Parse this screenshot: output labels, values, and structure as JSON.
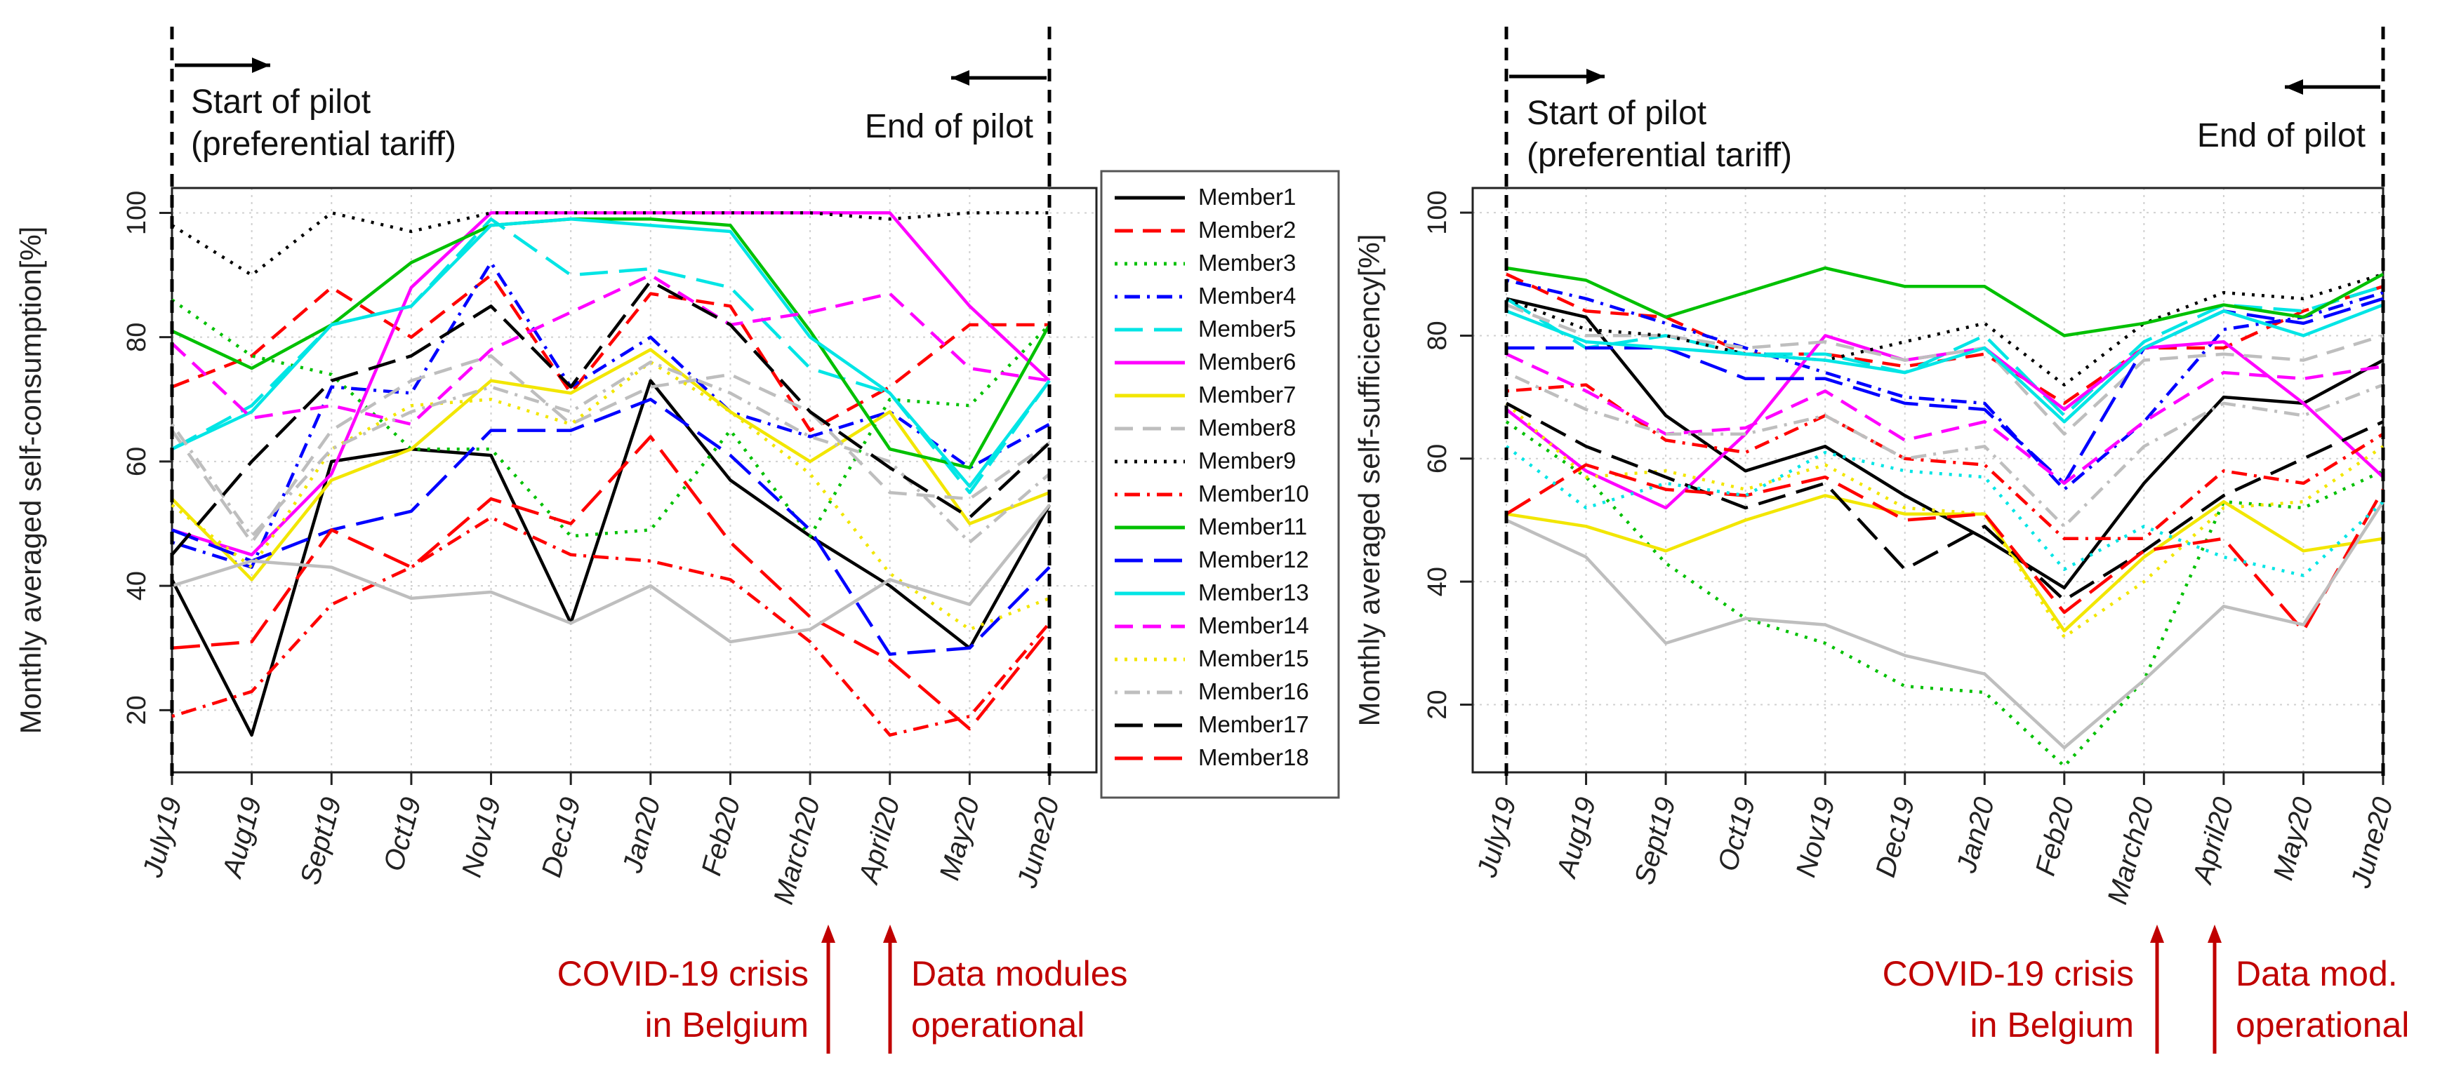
{
  "colors": {
    "annotation_red": "#c00000",
    "grid": "#d0d0d0",
    "axis": "#222222"
  },
  "legend": [
    {
      "name": "Member1",
      "color": "#000000",
      "dash": "solid"
    },
    {
      "name": "Member2",
      "color": "#ff0000",
      "dash": "dashed"
    },
    {
      "name": "Member3",
      "color": "#00c000",
      "dash": "dotted"
    },
    {
      "name": "Member4",
      "color": "#0000ff",
      "dash": "dotdash"
    },
    {
      "name": "Member5",
      "color": "#00e5e5",
      "dash": "longdash"
    },
    {
      "name": "Member6",
      "color": "#ff00ff",
      "dash": "solid"
    },
    {
      "name": "Member7",
      "color": "#f2e600",
      "dash": "solid"
    },
    {
      "name": "Member8",
      "color": "#bebebe",
      "dash": "dashed"
    },
    {
      "name": "Member9",
      "color": "#000000",
      "dash": "dotted"
    },
    {
      "name": "Member10",
      "color": "#ff0000",
      "dash": "dotdash"
    },
    {
      "name": "Member11",
      "color": "#00c000",
      "dash": "solid"
    },
    {
      "name": "Member12",
      "color": "#0000ff",
      "dash": "longdash"
    },
    {
      "name": "Member13",
      "color": "#00e5e5",
      "dash": "solid"
    },
    {
      "name": "Member14",
      "color": "#ff00ff",
      "dash": "dashed"
    },
    {
      "name": "Member15",
      "color": "#f2e600",
      "dash": "dotted"
    },
    {
      "name": "Member16",
      "color": "#bebebe",
      "dash": "dotdash"
    },
    {
      "name": "Member17",
      "color": "#000000",
      "dash": "longdash"
    },
    {
      "name": "Member18",
      "color": "#ff0000",
      "dash": "longdash"
    }
  ],
  "chart_data": [
    {
      "type": "line",
      "ylabel": "Monthly averaged self-consumption[%]",
      "yticks": [
        20,
        40,
        60,
        80,
        100
      ],
      "ylim": [
        10,
        104
      ],
      "categories": [
        "July19",
        "Aug19",
        "Sept19",
        "Oct19",
        "Nov19",
        "Dec19",
        "Jan20",
        "Feb20",
        "March20",
        "April20",
        "May20",
        "June20"
      ],
      "annotations": {
        "start_label": [
          "Start of pilot",
          "(preferential tariff)"
        ],
        "end_label": "End of pilot",
        "covid_label": [
          "COVID-19 crisis",
          "in Belgium"
        ],
        "modules_label": [
          "Data modules",
          "operational"
        ]
      },
      "series": [
        {
          "name": "Member1",
          "values": [
            41,
            16,
            60,
            62,
            61,
            34,
            73,
            57,
            48,
            40,
            30,
            53
          ]
        },
        {
          "name": "Member2",
          "values": [
            72,
            77,
            88,
            80,
            90,
            71,
            87,
            85,
            65,
            72,
            82,
            82
          ]
        },
        {
          "name": "Member3",
          "values": [
            86,
            77,
            74,
            62,
            62,
            48,
            49,
            65,
            48,
            70,
            69,
            82
          ]
        },
        {
          "name": "Member4",
          "values": [
            47,
            43,
            72,
            71,
            92,
            72,
            80,
            68,
            64,
            68,
            59,
            66
          ]
        },
        {
          "name": "Member5",
          "values": [
            62,
            69,
            82,
            85,
            99,
            90,
            91,
            88,
            75,
            71,
            55,
            73
          ]
        },
        {
          "name": "Member6",
          "values": [
            49,
            45,
            58,
            88,
            100,
            100,
            100,
            100,
            100,
            100,
            85,
            73
          ]
        },
        {
          "name": "Member7",
          "values": [
            54,
            41,
            57,
            62,
            73,
            71,
            78,
            68,
            60,
            68,
            50,
            55
          ]
        },
        {
          "name": "Member8",
          "values": [
            65,
            47,
            65,
            73,
            77,
            66,
            72,
            74,
            68,
            55,
            54,
            63
          ]
        },
        {
          "name": "Member9",
          "values": [
            98,
            90,
            100,
            97,
            100,
            100,
            100,
            100,
            100,
            99,
            100,
            100
          ]
        },
        {
          "name": "Member10",
          "values": [
            19,
            23,
            37,
            43,
            51,
            45,
            44,
            41,
            31,
            16,
            19,
            34
          ]
        },
        {
          "name": "Member11",
          "values": [
            81,
            75,
            82,
            92,
            98,
            99,
            99,
            98,
            81,
            62,
            59,
            82
          ]
        },
        {
          "name": "Member12",
          "values": [
            49,
            44,
            49,
            52,
            65,
            65,
            70,
            61,
            49,
            29,
            30,
            43
          ]
        },
        {
          "name": "Member13",
          "values": [
            62,
            68,
            82,
            85,
            98,
            99,
            98,
            97,
            80,
            71,
            56,
            73
          ]
        },
        {
          "name": "Member14",
          "values": [
            79,
            67,
            69,
            66,
            78,
            84,
            90,
            82,
            84,
            87,
            75,
            73
          ]
        },
        {
          "name": "Member15",
          "values": [
            53,
            43,
            62,
            69,
            70,
            66,
            76,
            68,
            58,
            42,
            33,
            38
          ]
        },
        {
          "name": "Member16",
          "values": [
            66,
            48,
            62,
            68,
            72,
            68,
            76,
            71,
            64,
            60,
            47,
            58
          ]
        },
        {
          "name": "Member17",
          "values": [
            45,
            60,
            73,
            77,
            85,
            72,
            89,
            82,
            68,
            59,
            51,
            63
          ]
        },
        {
          "name": "Member18",
          "values": [
            30,
            31,
            49,
            43,
            54,
            50,
            64,
            47,
            35,
            28,
            17,
            33
          ]
        },
        {
          "name": "Member16 (grey solid)",
          "hidden_legend": true,
          "values": [
            40,
            44,
            43,
            38,
            39,
            34,
            40,
            31,
            33,
            41,
            37,
            53
          ],
          "color": "#bebebe",
          "dash": "solid"
        }
      ]
    },
    {
      "type": "line",
      "ylabel": "Monthly averaged self-sufficicency[%]",
      "yticks": [
        20,
        40,
        60,
        80,
        100
      ],
      "ylim": [
        9,
        104
      ],
      "categories": [
        "July19",
        "Aug19",
        "Sept19",
        "Oct19",
        "Nov19",
        "Dec19",
        "Jan20",
        "Feb20",
        "March20",
        "April20",
        "May20",
        "June20"
      ],
      "annotations": {
        "start_label": [
          "Start of pilot",
          "(preferential tariff)"
        ],
        "end_label": "End of pilot",
        "covid_label": [
          "COVID-19 crisis",
          "in Belgium"
        ],
        "modules_label": [
          "Data mod.",
          "operational"
        ]
      },
      "series": [
        {
          "name": "Member1",
          "values": [
            86,
            83,
            67,
            58,
            62,
            54,
            47,
            39,
            56,
            70,
            69,
            76
          ]
        },
        {
          "name": "Member2",
          "values": [
            90,
            84,
            83,
            77,
            77,
            75,
            77,
            69,
            78,
            78,
            84,
            88
          ]
        },
        {
          "name": "Member3",
          "values": [
            66,
            57,
            43,
            34,
            30,
            23,
            22,
            10,
            24,
            53,
            52,
            58
          ]
        },
        {
          "name": "Member4",
          "values": [
            89,
            86,
            82,
            78,
            74,
            70,
            69,
            55,
            66,
            81,
            83,
            87
          ]
        },
        {
          "name": "Member5",
          "values": [
            86,
            78,
            80,
            77,
            77,
            74,
            80,
            67,
            79,
            85,
            84,
            88
          ]
        },
        {
          "name": "Member6",
          "values": [
            68,
            58,
            52,
            64,
            80,
            76,
            78,
            68,
            78,
            79,
            69,
            57
          ]
        },
        {
          "name": "Member7",
          "values": [
            51,
            49,
            45,
            50,
            54,
            51,
            51,
            32,
            44,
            53,
            45,
            47
          ]
        },
        {
          "name": "Member8",
          "values": [
            85,
            80,
            80,
            78,
            79,
            76,
            78,
            64,
            76,
            77,
            76,
            80
          ]
        },
        {
          "name": "Member9",
          "values": [
            86,
            81,
            80,
            77,
            76,
            79,
            82,
            72,
            82,
            87,
            86,
            90
          ]
        },
        {
          "name": "Member10",
          "values": [
            71,
            72,
            63,
            61,
            67,
            60,
            59,
            47,
            47,
            58,
            56,
            64
          ]
        },
        {
          "name": "Member11",
          "values": [
            91,
            89,
            83,
            87,
            91,
            88,
            88,
            80,
            82,
            85,
            83,
            90
          ]
        },
        {
          "name": "Member12",
          "values": [
            78,
            78,
            78,
            73,
            73,
            69,
            68,
            56,
            78,
            84,
            82,
            86
          ]
        },
        {
          "name": "Member13",
          "values": [
            84,
            79,
            78,
            77,
            76,
            74,
            78,
            66,
            78,
            84,
            80,
            85
          ]
        },
        {
          "name": "Member14",
          "values": [
            77,
            71,
            64,
            65,
            71,
            63,
            66,
            56,
            66,
            74,
            73,
            75
          ]
        },
        {
          "name": "Member15",
          "values": [
            69,
            57,
            58,
            55,
            59,
            52,
            51,
            31,
            40,
            52,
            53,
            62
          ]
        },
        {
          "name": "Member16",
          "values": [
            74,
            68,
            64,
            64,
            67,
            60,
            62,
            49,
            62,
            69,
            67,
            72
          ]
        },
        {
          "name": "Member17",
          "values": [
            69,
            62,
            57,
            52,
            56,
            42,
            49,
            37,
            45,
            54,
            60,
            66
          ]
        },
        {
          "name": "Member18",
          "values": [
            51,
            59,
            55,
            54,
            57,
            50,
            51,
            35,
            45,
            47,
            32,
            55
          ]
        },
        {
          "name": "Member16 (grey solid)",
          "hidden_legend": true,
          "values": [
            50,
            44,
            30,
            34,
            33,
            28,
            25,
            13,
            24,
            36,
            33,
            53
          ],
          "color": "#bebebe",
          "dash": "solid"
        },
        {
          "name": "Member10 (cyan dotted)",
          "hidden_legend": true,
          "values": [
            62,
            52,
            56,
            54,
            61,
            58,
            57,
            42,
            49,
            44,
            41,
            53
          ],
          "color": "#00e5e5",
          "dash": "dotted"
        }
      ]
    }
  ]
}
